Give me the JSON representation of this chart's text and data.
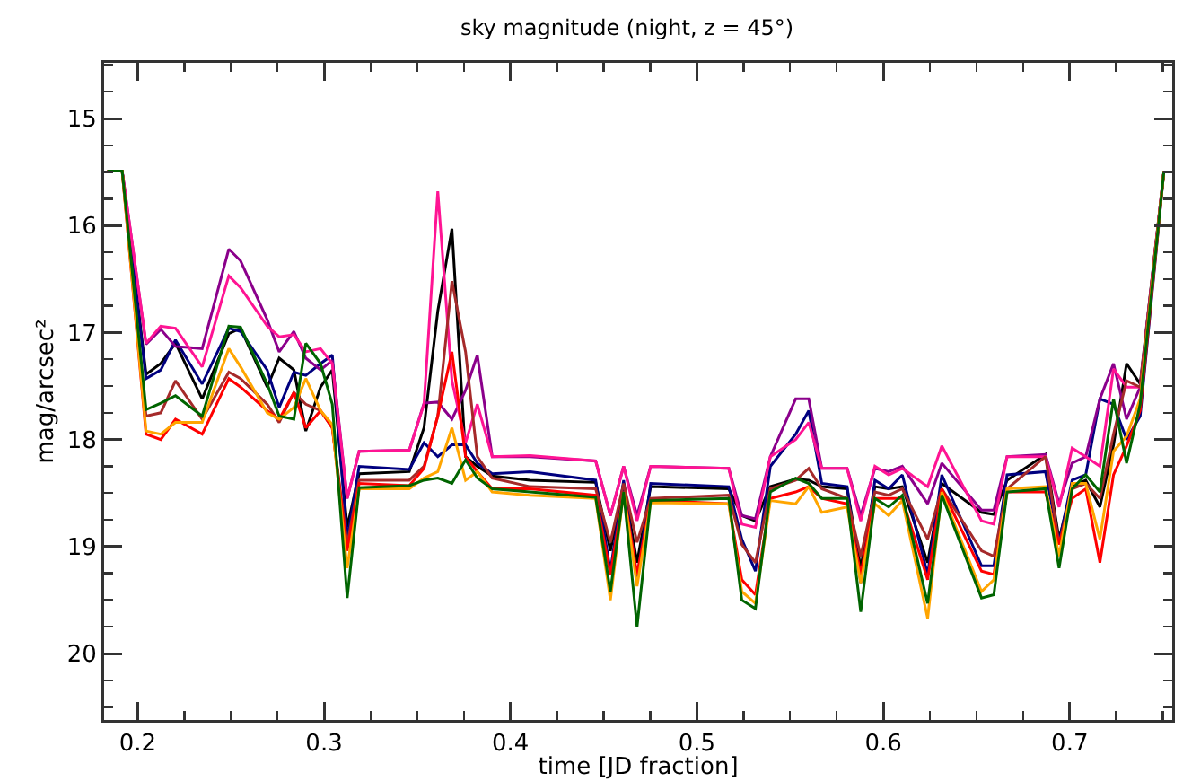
{
  "chart_data": {
    "type": "line",
    "title": "sky magnitude (night, z = 45°)",
    "xlabel": "time [JD fraction]",
    "ylabel": "mag/arcsec²",
    "x": [
      0.1838,
      0.1917,
      0.2045,
      0.2124,
      0.2203,
      0.2346,
      0.2489,
      0.2552,
      0.2695,
      0.2759,
      0.2838,
      0.2902,
      0.2981,
      0.3044,
      0.3124,
      0.3188,
      0.3457,
      0.3536,
      0.361,
      0.3686,
      0.3759,
      0.3822,
      0.3902,
      0.4105,
      0.4457,
      0.4536,
      0.4607,
      0.4679,
      0.4752,
      0.5171,
      0.5241,
      0.5314,
      0.5394,
      0.553,
      0.56,
      0.567,
      0.5806,
      0.5879,
      0.5955,
      0.6029,
      0.6102,
      0.6238,
      0.6314,
      0.6527,
      0.6593,
      0.6664,
      0.687,
      0.6943,
      0.7013,
      0.7086,
      0.7162,
      0.7235,
      0.7305,
      0.7378,
      0.7505
    ],
    "series": [
      {
        "color": "#000000",
        "values": [
          15.49,
          15.49,
          17.39,
          17.29,
          17.1,
          17.62,
          17.01,
          16.96,
          17.51,
          17.24,
          17.35,
          17.92,
          17.51,
          17.35,
          18.82,
          18.32,
          18.3,
          17.89,
          16.8,
          16.03,
          18.16,
          18.25,
          18.34,
          18.38,
          18.4,
          19.04,
          18.41,
          19.15,
          18.44,
          18.46,
          18.71,
          18.76,
          18.44,
          18.37,
          18.38,
          18.44,
          18.46,
          19.2,
          18.44,
          18.46,
          18.44,
          19.15,
          18.41,
          18.68,
          18.7,
          18.38,
          18.14,
          18.93,
          18.44,
          18.38,
          18.63,
          18.05,
          17.29,
          17.48,
          15.5
        ]
      },
      {
        "color": "#00007f",
        "values": [
          15.49,
          15.49,
          17.43,
          17.35,
          17.07,
          17.48,
          16.96,
          16.99,
          17.35,
          17.7,
          17.37,
          17.4,
          17.29,
          17.21,
          18.93,
          18.25,
          18.28,
          18.03,
          18.16,
          18.05,
          18.05,
          18.22,
          18.32,
          18.3,
          18.38,
          19.23,
          18.38,
          19.31,
          18.41,
          18.44,
          18.93,
          19.23,
          18.25,
          17.95,
          17.73,
          18.41,
          18.44,
          19.34,
          18.38,
          18.46,
          18.33,
          19.26,
          18.33,
          19.18,
          19.18,
          18.33,
          18.3,
          18.96,
          18.38,
          18.33,
          17.62,
          17.67,
          18.0,
          17.78,
          15.5
        ]
      },
      {
        "color": "#8b008b",
        "values": [
          15.49,
          15.49,
          17.11,
          16.97,
          17.13,
          17.15,
          16.22,
          16.33,
          16.88,
          17.18,
          16.99,
          17.24,
          17.35,
          17.26,
          18.55,
          18.11,
          18.1,
          17.66,
          17.65,
          17.81,
          17.54,
          17.21,
          18.16,
          18.16,
          18.2,
          18.71,
          18.25,
          18.71,
          18.25,
          18.27,
          18.71,
          18.74,
          18.16,
          17.62,
          17.62,
          18.27,
          18.27,
          18.71,
          18.27,
          18.3,
          18.25,
          18.6,
          18.22,
          18.66,
          18.66,
          18.16,
          18.14,
          18.6,
          18.22,
          18.16,
          17.62,
          17.29,
          17.81,
          17.51,
          15.5
        ]
      },
      {
        "color": "#ff1493",
        "values": [
          15.49,
          15.49,
          17.1,
          16.94,
          16.96,
          17.32,
          16.47,
          16.58,
          16.94,
          17.04,
          17.02,
          17.18,
          17.15,
          17.29,
          18.55,
          18.11,
          18.1,
          17.67,
          15.68,
          17.45,
          18.03,
          17.67,
          18.16,
          18.15,
          18.2,
          18.71,
          18.25,
          18.76,
          18.25,
          18.27,
          18.79,
          18.82,
          18.16,
          18.0,
          17.84,
          18.27,
          18.27,
          18.76,
          18.25,
          18.33,
          18.27,
          18.44,
          18.06,
          18.76,
          18.79,
          18.16,
          18.16,
          18.63,
          18.08,
          18.16,
          18.25,
          17.34,
          17.51,
          17.51,
          15.5
        ]
      },
      {
        "color": "#a52a2a",
        "values": [
          15.49,
          15.49,
          17.78,
          17.75,
          17.45,
          17.81,
          17.37,
          17.43,
          17.67,
          17.84,
          17.56,
          17.67,
          17.73,
          17.89,
          18.98,
          18.38,
          18.38,
          18.25,
          17.78,
          16.52,
          17.18,
          18.16,
          18.36,
          18.44,
          18.46,
          18.96,
          18.41,
          18.96,
          18.55,
          18.52,
          18.98,
          19.15,
          18.46,
          18.38,
          18.27,
          18.46,
          18.55,
          19.09,
          18.49,
          18.52,
          18.46,
          18.93,
          18.46,
          19.04,
          19.09,
          18.46,
          18.16,
          18.98,
          18.46,
          18.41,
          18.55,
          17.95,
          17.45,
          17.51,
          15.5
        ]
      },
      {
        "color": "#ff0000",
        "values": [
          15.49,
          15.49,
          17.95,
          18.0,
          17.81,
          17.95,
          17.43,
          17.51,
          17.73,
          17.81,
          17.56,
          17.89,
          17.73,
          17.89,
          19.04,
          18.41,
          18.43,
          18.27,
          17.78,
          17.18,
          18.16,
          18.3,
          18.46,
          18.46,
          18.52,
          19.26,
          18.49,
          19.26,
          18.57,
          18.6,
          19.31,
          19.45,
          18.55,
          18.49,
          18.44,
          18.55,
          18.6,
          19.26,
          18.55,
          18.55,
          18.55,
          19.31,
          18.46,
          19.23,
          19.26,
          18.49,
          18.49,
          18.98,
          18.55,
          18.46,
          19.15,
          18.33,
          18.06,
          17.73,
          15.5
        ]
      },
      {
        "color": "#ffa500",
        "values": [
          15.49,
          15.49,
          17.92,
          17.95,
          17.84,
          17.84,
          17.15,
          17.32,
          17.75,
          17.81,
          17.7,
          17.43,
          17.73,
          17.86,
          19.2,
          18.46,
          18.46,
          18.36,
          18.3,
          17.89,
          18.38,
          18.3,
          18.49,
          18.52,
          18.55,
          19.5,
          18.49,
          19.37,
          18.59,
          18.6,
          19.42,
          19.53,
          18.57,
          18.6,
          18.44,
          18.68,
          18.63,
          19.34,
          18.6,
          18.71,
          18.57,
          19.67,
          18.49,
          19.42,
          19.31,
          18.46,
          18.44,
          19.09,
          18.41,
          18.41,
          18.93,
          18.11,
          17.97,
          17.62,
          15.5
        ]
      },
      {
        "color": "#006400",
        "values": [
          15.49,
          15.49,
          17.72,
          17.66,
          17.59,
          17.78,
          16.94,
          16.95,
          17.48,
          17.78,
          17.81,
          17.1,
          17.29,
          17.67,
          19.48,
          18.45,
          18.43,
          18.38,
          18.36,
          18.41,
          18.19,
          18.36,
          18.46,
          18.49,
          18.54,
          19.42,
          18.49,
          19.75,
          18.57,
          18.55,
          19.5,
          19.58,
          18.49,
          18.36,
          18.41,
          18.55,
          18.55,
          19.61,
          18.55,
          18.63,
          18.52,
          19.53,
          18.52,
          19.48,
          19.45,
          18.49,
          18.46,
          19.2,
          18.46,
          18.33,
          18.49,
          17.62,
          18.22,
          17.67,
          15.5
        ]
      }
    ],
    "xlim": [
      0.182,
      0.755
    ],
    "xticks": [
      {
        "value": 0.2,
        "label": "0.2"
      },
      {
        "value": 0.225,
        "label": null
      },
      {
        "value": 0.25,
        "label": null
      },
      {
        "value": 0.275,
        "label": null
      },
      {
        "value": 0.3,
        "label": "0.3"
      },
      {
        "value": 0.325,
        "label": null
      },
      {
        "value": 0.35,
        "label": null
      },
      {
        "value": 0.375,
        "label": null
      },
      {
        "value": 0.4,
        "label": "0.4"
      },
      {
        "value": 0.425,
        "label": null
      },
      {
        "value": 0.45,
        "label": null
      },
      {
        "value": 0.475,
        "label": null
      },
      {
        "value": 0.5,
        "label": "0.5"
      },
      {
        "value": 0.525,
        "label": null
      },
      {
        "value": 0.55,
        "label": null
      },
      {
        "value": 0.575,
        "label": null
      },
      {
        "value": 0.6,
        "label": "0.6"
      },
      {
        "value": 0.625,
        "label": null
      },
      {
        "value": 0.65,
        "label": null
      },
      {
        "value": 0.675,
        "label": null
      },
      {
        "value": 0.7,
        "label": "0.7"
      },
      {
        "value": 0.725,
        "label": null
      },
      {
        "value": 0.75,
        "label": null
      }
    ],
    "ylim": [
      20.62,
      14.48
    ],
    "yticks": [
      {
        "value": 14.5,
        "label": null
      },
      {
        "value": 14.75,
        "label": null
      },
      {
        "value": 15,
        "label": "15"
      },
      {
        "value": 15.25,
        "label": null
      },
      {
        "value": 15.5,
        "label": null
      },
      {
        "value": 15.75,
        "label": null
      },
      {
        "value": 16,
        "label": "16"
      },
      {
        "value": 16.25,
        "label": null
      },
      {
        "value": 16.5,
        "label": null
      },
      {
        "value": 16.75,
        "label": null
      },
      {
        "value": 17,
        "label": "17"
      },
      {
        "value": 17.25,
        "label": null
      },
      {
        "value": 17.5,
        "label": null
      },
      {
        "value": 17.75,
        "label": null
      },
      {
        "value": 18,
        "label": "18"
      },
      {
        "value": 18.25,
        "label": null
      },
      {
        "value": 18.5,
        "label": null
      },
      {
        "value": 18.75,
        "label": null
      },
      {
        "value": 19,
        "label": "19"
      },
      {
        "value": 19.25,
        "label": null
      },
      {
        "value": 19.5,
        "label": null
      },
      {
        "value": 19.75,
        "label": null
      },
      {
        "value": 20,
        "label": "20"
      },
      {
        "value": 20.25,
        "label": null
      },
      {
        "value": 20.5,
        "label": null
      }
    ],
    "grid": false,
    "marker": "none",
    "line_style": "solid"
  }
}
